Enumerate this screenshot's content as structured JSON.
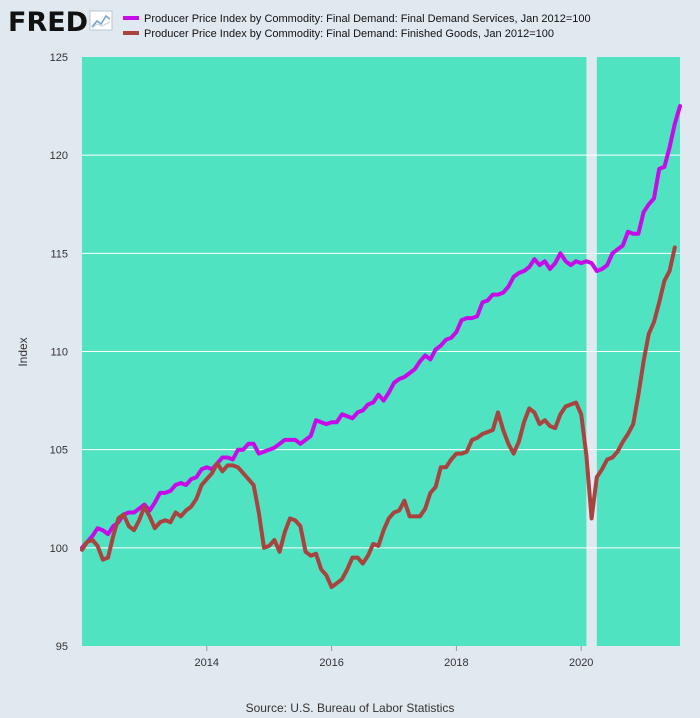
{
  "logo": {
    "text": "FRED",
    "icon": "line-chart-icon",
    "colors": {
      "text": "#111111",
      "accent": "#a3c4d9"
    }
  },
  "source": "Source: U.S. Bureau of Labor Statistics",
  "colors": {
    "page_background": "#e1e9f0",
    "plot_background": "#50e3c2",
    "recession_band": "#e1e9f0",
    "gridline": "#ffffff"
  },
  "chart_data": {
    "type": "line",
    "title": "",
    "xlabel": "",
    "ylabel": "Index",
    "ylim": [
      95,
      125
    ],
    "yticks": [
      "95",
      "100",
      "105",
      "110",
      "115",
      "120",
      "125"
    ],
    "xlim": [
      "2012-01",
      "2021-08"
    ],
    "xticks": [
      "2014",
      "2016",
      "2018",
      "2020"
    ],
    "grid": "horizontal",
    "legend_position": "top-left",
    "shaded_periods": [
      {
        "start": "2020-02",
        "end": "2020-04"
      }
    ],
    "series": [
      {
        "name": "Producer Price Index by Commodity: Final Demand: Final Demand Services, Jan 2012=100",
        "color": "#c70be8",
        "points": [
          [
            "2012-01",
            100.0
          ],
          [
            "2012-02",
            100.3
          ],
          [
            "2012-03",
            100.6
          ],
          [
            "2012-04",
            101.0
          ],
          [
            "2012-05",
            100.9
          ],
          [
            "2012-06",
            100.7
          ],
          [
            "2012-07",
            101.1
          ],
          [
            "2012-08",
            101.3
          ],
          [
            "2012-09",
            101.7
          ],
          [
            "2012-10",
            101.8
          ],
          [
            "2012-11",
            101.8
          ],
          [
            "2012-12",
            102.0
          ],
          [
            "2013-01",
            102.2
          ],
          [
            "2013-02",
            101.9
          ],
          [
            "2013-03",
            102.3
          ],
          [
            "2013-04",
            102.8
          ],
          [
            "2013-05",
            102.8
          ],
          [
            "2013-06",
            102.9
          ],
          [
            "2013-07",
            103.2
          ],
          [
            "2013-08",
            103.3
          ],
          [
            "2013-09",
            103.2
          ],
          [
            "2013-10",
            103.5
          ],
          [
            "2013-11",
            103.6
          ],
          [
            "2013-12",
            104.0
          ],
          [
            "2014-01",
            104.1
          ],
          [
            "2014-02",
            104.0
          ],
          [
            "2014-03",
            104.3
          ],
          [
            "2014-04",
            104.6
          ],
          [
            "2014-05",
            104.6
          ],
          [
            "2014-06",
            104.5
          ],
          [
            "2014-07",
            105.0
          ],
          [
            "2014-08",
            105.0
          ],
          [
            "2014-09",
            105.3
          ],
          [
            "2014-10",
            105.3
          ],
          [
            "2014-11",
            104.8
          ],
          [
            "2014-12",
            104.9
          ],
          [
            "2015-01",
            105.0
          ],
          [
            "2015-02",
            105.1
          ],
          [
            "2015-03",
            105.3
          ],
          [
            "2015-04",
            105.5
          ],
          [
            "2015-05",
            105.5
          ],
          [
            "2015-06",
            105.5
          ],
          [
            "2015-07",
            105.3
          ],
          [
            "2015-08",
            105.5
          ],
          [
            "2015-09",
            105.7
          ],
          [
            "2015-10",
            106.5
          ],
          [
            "2015-11",
            106.4
          ],
          [
            "2015-12",
            106.3
          ],
          [
            "2016-01",
            106.4
          ],
          [
            "2016-02",
            106.4
          ],
          [
            "2016-03",
            106.8
          ],
          [
            "2016-04",
            106.7
          ],
          [
            "2016-05",
            106.6
          ],
          [
            "2016-06",
            106.9
          ],
          [
            "2016-07",
            107.0
          ],
          [
            "2016-08",
            107.3
          ],
          [
            "2016-09",
            107.4
          ],
          [
            "2016-10",
            107.8
          ],
          [
            "2016-11",
            107.5
          ],
          [
            "2016-12",
            107.9
          ],
          [
            "2017-01",
            108.4
          ],
          [
            "2017-02",
            108.6
          ],
          [
            "2017-03",
            108.7
          ],
          [
            "2017-04",
            108.9
          ],
          [
            "2017-05",
            109.1
          ],
          [
            "2017-06",
            109.5
          ],
          [
            "2017-07",
            109.8
          ],
          [
            "2017-08",
            109.6
          ],
          [
            "2017-09",
            110.1
          ],
          [
            "2017-10",
            110.3
          ],
          [
            "2017-11",
            110.6
          ],
          [
            "2017-12",
            110.7
          ],
          [
            "2018-01",
            111.0
          ],
          [
            "2018-02",
            111.6
          ],
          [
            "2018-03",
            111.7
          ],
          [
            "2018-04",
            111.7
          ],
          [
            "2018-05",
            111.8
          ],
          [
            "2018-06",
            112.5
          ],
          [
            "2018-07",
            112.6
          ],
          [
            "2018-08",
            112.9
          ],
          [
            "2018-09",
            112.9
          ],
          [
            "2018-10",
            113.0
          ],
          [
            "2018-11",
            113.3
          ],
          [
            "2018-12",
            113.8
          ],
          [
            "2019-01",
            114.0
          ],
          [
            "2019-02",
            114.1
          ],
          [
            "2019-03",
            114.3
          ],
          [
            "2019-04",
            114.7
          ],
          [
            "2019-05",
            114.4
          ],
          [
            "2019-06",
            114.6
          ],
          [
            "2019-07",
            114.2
          ],
          [
            "2019-08",
            114.5
          ],
          [
            "2019-09",
            115.0
          ],
          [
            "2019-10",
            114.6
          ],
          [
            "2019-11",
            114.4
          ],
          [
            "2019-12",
            114.6
          ],
          [
            "2020-01",
            114.5
          ],
          [
            "2020-02",
            114.6
          ],
          [
            "2020-03",
            114.5
          ],
          [
            "2020-04",
            114.1
          ],
          [
            "2020-05",
            114.2
          ],
          [
            "2020-06",
            114.4
          ],
          [
            "2020-07",
            115.0
          ],
          [
            "2020-08",
            115.2
          ],
          [
            "2020-09",
            115.4
          ],
          [
            "2020-10",
            116.1
          ],
          [
            "2020-11",
            116.0
          ],
          [
            "2020-12",
            116.0
          ],
          [
            "2021-01",
            117.1
          ],
          [
            "2021-02",
            117.5
          ],
          [
            "2021-03",
            117.8
          ],
          [
            "2021-04",
            119.3
          ],
          [
            "2021-05",
            119.4
          ],
          [
            "2021-06",
            120.4
          ],
          [
            "2021-07",
            121.6
          ],
          [
            "2021-08",
            122.5
          ]
        ]
      },
      {
        "name": "Producer Price Index by Commodity: Final Demand: Finished Goods, Jan 2012=100",
        "color": "#a9433f",
        "points": [
          [
            "2012-01",
            99.9
          ],
          [
            "2012-02",
            100.3
          ],
          [
            "2012-03",
            100.4
          ],
          [
            "2012-04",
            100.1
          ],
          [
            "2012-05",
            99.4
          ],
          [
            "2012-06",
            99.5
          ],
          [
            "2012-07",
            100.6
          ],
          [
            "2012-08",
            101.5
          ],
          [
            "2012-09",
            101.7
          ],
          [
            "2012-10",
            101.1
          ],
          [
            "2012-11",
            100.9
          ],
          [
            "2012-12",
            101.4
          ],
          [
            "2013-01",
            102.1
          ],
          [
            "2013-02",
            101.6
          ],
          [
            "2013-03",
            101.0
          ],
          [
            "2013-04",
            101.3
          ],
          [
            "2013-05",
            101.4
          ],
          [
            "2013-06",
            101.3
          ],
          [
            "2013-07",
            101.8
          ],
          [
            "2013-08",
            101.6
          ],
          [
            "2013-09",
            101.9
          ],
          [
            "2013-10",
            102.1
          ],
          [
            "2013-11",
            102.5
          ],
          [
            "2013-12",
            103.2
          ],
          [
            "2014-01",
            103.5
          ],
          [
            "2014-02",
            103.8
          ],
          [
            "2014-03",
            104.3
          ],
          [
            "2014-04",
            103.9
          ],
          [
            "2014-05",
            104.2
          ],
          [
            "2014-06",
            104.2
          ],
          [
            "2014-07",
            104.1
          ],
          [
            "2014-08",
            103.8
          ],
          [
            "2014-09",
            103.5
          ],
          [
            "2014-10",
            103.2
          ],
          [
            "2014-11",
            101.8
          ],
          [
            "2014-12",
            100.0
          ],
          [
            "2015-01",
            100.1
          ],
          [
            "2015-02",
            100.4
          ],
          [
            "2015-03",
            99.8
          ],
          [
            "2015-04",
            100.8
          ],
          [
            "2015-05",
            101.5
          ],
          [
            "2015-06",
            101.4
          ],
          [
            "2015-07",
            101.1
          ],
          [
            "2015-08",
            99.8
          ],
          [
            "2015-09",
            99.6
          ],
          [
            "2015-10",
            99.7
          ],
          [
            "2015-11",
            98.9
          ],
          [
            "2015-12",
            98.6
          ],
          [
            "2016-01",
            98.0
          ],
          [
            "2016-02",
            98.2
          ],
          [
            "2016-03",
            98.4
          ],
          [
            "2016-04",
            98.9
          ],
          [
            "2016-05",
            99.5
          ],
          [
            "2016-06",
            99.5
          ],
          [
            "2016-07",
            99.2
          ],
          [
            "2016-08",
            99.6
          ],
          [
            "2016-09",
            100.2
          ],
          [
            "2016-10",
            100.1
          ],
          [
            "2016-11",
            100.9
          ],
          [
            "2016-12",
            101.5
          ],
          [
            "2017-01",
            101.8
          ],
          [
            "2017-02",
            101.9
          ],
          [
            "2017-03",
            102.4
          ],
          [
            "2017-04",
            101.6
          ],
          [
            "2017-05",
            101.6
          ],
          [
            "2017-06",
            101.6
          ],
          [
            "2017-07",
            102.0
          ],
          [
            "2017-08",
            102.8
          ],
          [
            "2017-09",
            103.1
          ],
          [
            "2017-10",
            104.1
          ],
          [
            "2017-11",
            104.1
          ],
          [
            "2017-12",
            104.5
          ],
          [
            "2018-01",
            104.8
          ],
          [
            "2018-02",
            104.8
          ],
          [
            "2018-03",
            104.9
          ],
          [
            "2018-04",
            105.5
          ],
          [
            "2018-05",
            105.6
          ],
          [
            "2018-06",
            105.8
          ],
          [
            "2018-07",
            105.9
          ],
          [
            "2018-08",
            106.0
          ],
          [
            "2018-09",
            106.9
          ],
          [
            "2018-10",
            106.0
          ],
          [
            "2018-11",
            105.3
          ],
          [
            "2018-12",
            104.8
          ],
          [
            "2019-01",
            105.4
          ],
          [
            "2019-02",
            106.4
          ],
          [
            "2019-03",
            107.1
          ],
          [
            "2019-04",
            106.9
          ],
          [
            "2019-05",
            106.3
          ],
          [
            "2019-06",
            106.5
          ],
          [
            "2019-07",
            106.2
          ],
          [
            "2019-08",
            106.1
          ],
          [
            "2019-09",
            106.8
          ],
          [
            "2019-10",
            107.2
          ],
          [
            "2019-11",
            107.3
          ],
          [
            "2019-12",
            107.4
          ],
          [
            "2020-01",
            106.8
          ],
          [
            "2020-02",
            104.7
          ],
          [
            "2020-03",
            101.5
          ],
          [
            "2020-04",
            103.6
          ],
          [
            "2020-05",
            104.0
          ],
          [
            "2020-06",
            104.5
          ],
          [
            "2020-07",
            104.6
          ],
          [
            "2020-08",
            104.9
          ],
          [
            "2020-09",
            105.4
          ],
          [
            "2020-10",
            105.8
          ],
          [
            "2020-11",
            106.3
          ],
          [
            "2020-12",
            107.8
          ],
          [
            "2021-01",
            109.5
          ],
          [
            "2021-02",
            110.9
          ],
          [
            "2021-03",
            111.5
          ],
          [
            "2021-04",
            112.5
          ],
          [
            "2021-05",
            113.6
          ],
          [
            "2021-06",
            114.1
          ],
          [
            "2021-07",
            115.3
          ]
        ]
      }
    ]
  }
}
